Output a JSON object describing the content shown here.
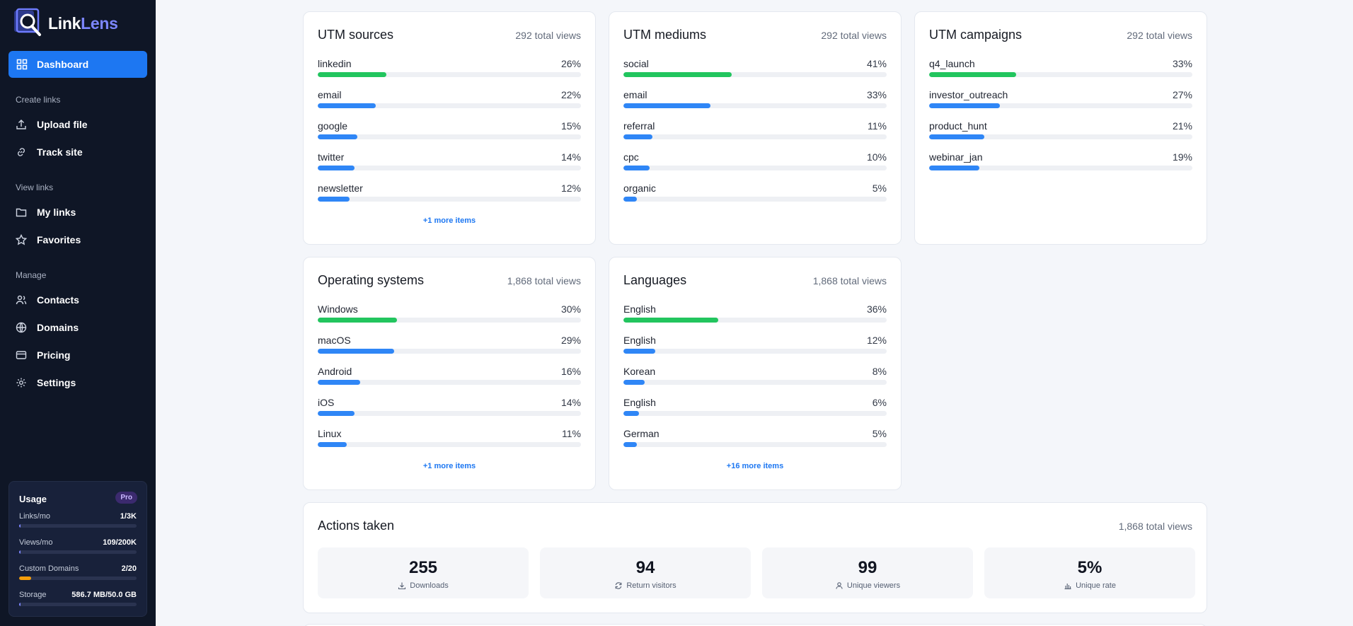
{
  "app": {
    "logo_part1": "Link",
    "logo_part2": "Lens"
  },
  "sidebar": {
    "dashboard_label": "Dashboard",
    "sections": {
      "create": "Create links",
      "view": "View links",
      "manage": "Manage"
    },
    "items": {
      "upload": "Upload file",
      "track": "Track site",
      "mylinks": "My links",
      "favorites": "Favorites",
      "contacts": "Contacts",
      "domains": "Domains",
      "pricing": "Pricing",
      "settings": "Settings"
    }
  },
  "usage": {
    "title": "Usage",
    "plan": "Pro",
    "rows": [
      {
        "label": "Links/mo",
        "value": "1/3K",
        "fraction": 0.0003,
        "color": "#7c86ff"
      },
      {
        "label": "Views/mo",
        "value": "109/200K",
        "fraction": 0.0005,
        "color": "#7c86ff"
      },
      {
        "label": "Custom Domains",
        "value": "2/20",
        "fraction": 0.1,
        "color": "#f59e0b"
      },
      {
        "label": "Storage",
        "value": "586.7 MB/50.0 GB",
        "fraction": 0.012,
        "color": "#7c86ff"
      }
    ]
  },
  "cards": {
    "utm_sources": {
      "title": "UTM sources",
      "total": "292 total views",
      "more": "+1 more items",
      "rows": [
        {
          "name": "linkedin",
          "pct": "26%",
          "value": 26
        },
        {
          "name": "email",
          "pct": "22%",
          "value": 22
        },
        {
          "name": "google",
          "pct": "15%",
          "value": 15
        },
        {
          "name": "twitter",
          "pct": "14%",
          "value": 14
        },
        {
          "name": "newsletter",
          "pct": "12%",
          "value": 12
        }
      ]
    },
    "utm_mediums": {
      "title": "UTM mediums",
      "total": "292 total views",
      "rows": [
        {
          "name": "social",
          "pct": "41%",
          "value": 41
        },
        {
          "name": "email",
          "pct": "33%",
          "value": 33
        },
        {
          "name": "referral",
          "pct": "11%",
          "value": 11
        },
        {
          "name": "cpc",
          "pct": "10%",
          "value": 10
        },
        {
          "name": "organic",
          "pct": "5%",
          "value": 5
        }
      ]
    },
    "utm_campaigns": {
      "title": "UTM campaigns",
      "total": "292 total views",
      "rows": [
        {
          "name": "q4_launch",
          "pct": "33%",
          "value": 33
        },
        {
          "name": "investor_outreach",
          "pct": "27%",
          "value": 27
        },
        {
          "name": "product_hunt",
          "pct": "21%",
          "value": 21
        },
        {
          "name": "webinar_jan",
          "pct": "19%",
          "value": 19
        }
      ]
    },
    "operating_systems": {
      "title": "Operating systems",
      "total": "1,868 total views",
      "more": "+1 more items",
      "rows": [
        {
          "name": "Windows",
          "pct": "30%",
          "value": 30
        },
        {
          "name": "macOS",
          "pct": "29%",
          "value": 29
        },
        {
          "name": "Android",
          "pct": "16%",
          "value": 16
        },
        {
          "name": "iOS",
          "pct": "14%",
          "value": 14
        },
        {
          "name": "Linux",
          "pct": "11%",
          "value": 11
        }
      ]
    },
    "languages": {
      "title": "Languages",
      "total": "1,868 total views",
      "more": "+16 more items",
      "rows": [
        {
          "name": "English",
          "pct": "36%",
          "value": 36
        },
        {
          "name": "English",
          "pct": "12%",
          "value": 12
        },
        {
          "name": "Korean",
          "pct": "8%",
          "value": 8
        },
        {
          "name": "English",
          "pct": "6%",
          "value": 6
        },
        {
          "name": "German",
          "pct": "5%",
          "value": 5
        }
      ]
    }
  },
  "actions": {
    "title": "Actions taken",
    "total": "1,868 total views",
    "stats": [
      {
        "value": "255",
        "label": "Downloads",
        "icon": "download-icon"
      },
      {
        "value": "94",
        "label": "Return visitors",
        "icon": "refresh-icon"
      },
      {
        "value": "99",
        "label": "Unique viewers",
        "icon": "user-icon"
      },
      {
        "value": "5%",
        "label": "Unique rate",
        "icon": "bar-chart-icon"
      }
    ]
  },
  "colors": {
    "accent": "#1d77f2",
    "top_bar": "#22c55e",
    "bar": "#2f86f6",
    "sidebar_bg": "#0f1626"
  }
}
